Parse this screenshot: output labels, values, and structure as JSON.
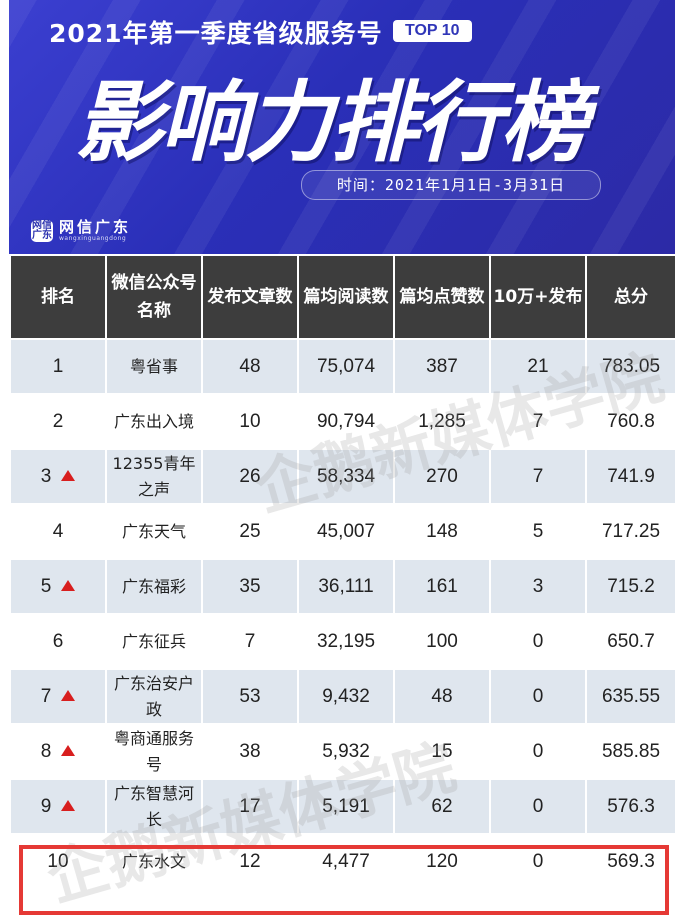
{
  "header": {
    "subtitle": "2021年第一季度省级服务号",
    "badge": "TOP 10",
    "title": "影响力排行榜",
    "date_range": "时间：2021年1月1日-3月31日",
    "logo_cn": "网信广东",
    "logo_en": "wangxinguangdong",
    "logo_mark": "网信广东"
  },
  "table": {
    "columns": [
      "排名",
      "微信公众号名称",
      "发布文章数",
      "篇均阅读数",
      "篇均点赞数",
      "10万+发布",
      "总分"
    ],
    "rows": [
      {
        "rank": "1",
        "up": false,
        "name": "粤省事",
        "articles": "48",
        "avg_reads": "75,074",
        "avg_likes": "387",
        "over_100k": "21",
        "score": "783.05"
      },
      {
        "rank": "2",
        "up": false,
        "name": "广东出入境",
        "articles": "10",
        "avg_reads": "90,794",
        "avg_likes": "1,285",
        "over_100k": "7",
        "score": "760.8"
      },
      {
        "rank": "3",
        "up": true,
        "name": "12355青年之声",
        "articles": "26",
        "avg_reads": "58,334",
        "avg_likes": "270",
        "over_100k": "7",
        "score": "741.9"
      },
      {
        "rank": "4",
        "up": false,
        "name": "广东天气",
        "articles": "25",
        "avg_reads": "45,007",
        "avg_likes": "148",
        "over_100k": "5",
        "score": "717.25"
      },
      {
        "rank": "5",
        "up": true,
        "name": "广东福彩",
        "articles": "35",
        "avg_reads": "36,111",
        "avg_likes": "161",
        "over_100k": "3",
        "score": "715.2"
      },
      {
        "rank": "6",
        "up": false,
        "name": "广东征兵",
        "articles": "7",
        "avg_reads": "32,195",
        "avg_likes": "100",
        "over_100k": "0",
        "score": "650.7"
      },
      {
        "rank": "7",
        "up": true,
        "name": "广东治安户政",
        "articles": "53",
        "avg_reads": "9,432",
        "avg_likes": "48",
        "over_100k": "0",
        "score": "635.55"
      },
      {
        "rank": "8",
        "up": true,
        "name": "粤商通服务号",
        "articles": "38",
        "avg_reads": "5,932",
        "avg_likes": "15",
        "over_100k": "0",
        "score": "585.85"
      },
      {
        "rank": "9",
        "up": true,
        "name": "广东智慧河长",
        "articles": "17",
        "avg_reads": "5,191",
        "avg_likes": "62",
        "over_100k": "0",
        "score": "576.3"
      },
      {
        "rank": "10",
        "up": false,
        "name": "广东水文",
        "articles": "12",
        "avg_reads": "4,477",
        "avg_likes": "120",
        "over_100k": "0",
        "score": "569.3"
      }
    ]
  },
  "watermark": [
    "企鹅新媒体学院",
    "企鹅新媒体学院"
  ],
  "colors": {
    "banner": "#2f33b8",
    "header_row": "#3d3d3d",
    "stripe": "#dfe6ee",
    "up_arrow": "#d81e1e",
    "highlight": "#e53935"
  },
  "icons": {
    "up": "up-triangle-icon"
  }
}
